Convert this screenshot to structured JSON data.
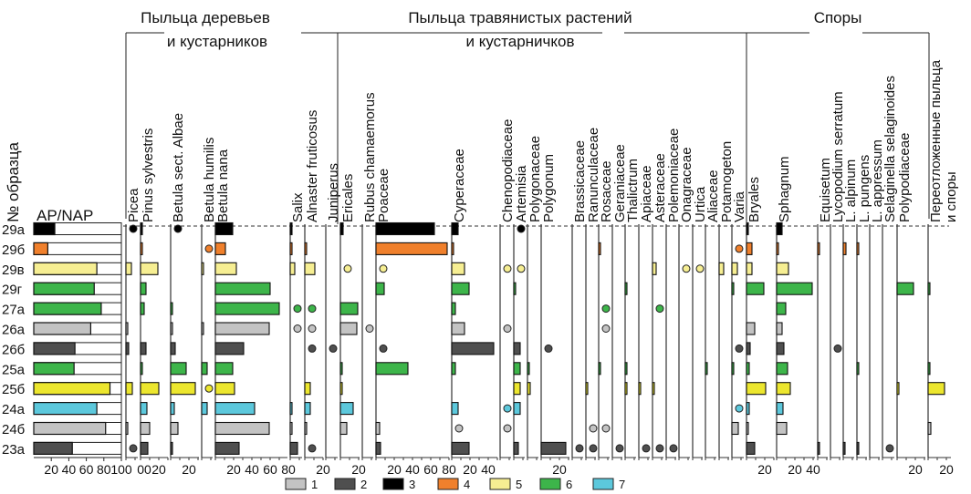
{
  "chart_data": {
    "type": "bar",
    "title": "",
    "ylabel": "№ образца",
    "samples": [
      "29а",
      "29б",
      "29в",
      "29г",
      "27а",
      "26а",
      "26б",
      "25а",
      "25б",
      "24а",
      "24б",
      "23а"
    ],
    "sample_group": [
      3,
      4,
      5,
      6,
      6,
      1,
      2,
      6,
      5,
      7,
      1,
      2
    ],
    "group_colors": {
      "1": "#c3c3c3",
      "2": "#4f4f4f",
      "3": "#000000",
      "4": "#f0802c",
      "5": "#f6ee92",
      "6": "#3db54a",
      "7": "#5cc8dc"
    },
    "bright_yellow": "#ece62e",
    "groups": [
      {
        "line1": "Пыльца деревьев",
        "line2": "и кустарников"
      },
      {
        "line1": "Пыльца травянистых растений",
        "line2": "и кустарничков"
      },
      {
        "line1": "Споры",
        "line2": ""
      }
    ],
    "apnap": {
      "label": "AP/NAP",
      "ticks": [
        "20",
        "40",
        "60",
        "80",
        "100"
      ],
      "values": [
        24,
        16,
        72,
        69,
        77,
        65,
        47,
        46,
        87,
        72,
        82,
        44
      ]
    },
    "presence_note": "+ = single grains (dot)",
    "taxa": [
      {
        "name": "Picea",
        "ticks": [
          "00"
        ],
        "values": [
          "+",
          null,
          6,
          null,
          null,
          0.5,
          3,
          null,
          7,
          null,
          0.5,
          "+"
        ]
      },
      {
        "name": "Pinus sylvestris",
        "ticks": [
          "20"
        ],
        "values": [
          0.5,
          0.5,
          19,
          6,
          4,
          null,
          6,
          2,
          20,
          7,
          10,
          8
        ]
      },
      {
        "name": "Betula sect. Albae",
        "ticks": [
          "20"
        ],
        "values": [
          "+",
          null,
          null,
          null,
          0.5,
          0.5,
          5,
          17,
          27,
          4,
          8,
          0.5
        ]
      },
      {
        "name": "Betula humilis",
        "ticks": [],
        "values": [
          null,
          "+",
          2,
          null,
          null,
          2,
          null,
          6,
          "+",
          6,
          null,
          null
        ]
      },
      {
        "name": "Betula nana",
        "ticks": [
          "20",
          "40",
          "60",
          "80"
        ],
        "values": [
          19,
          11,
          23,
          60,
          70,
          59,
          31,
          19,
          21,
          43,
          59,
          26
        ]
      },
      {
        "name": "Salix",
        "ticks": [],
        "values": [
          0.5,
          0.5,
          5,
          null,
          "+",
          "+",
          null,
          null,
          null,
          0.5,
          0.5,
          8
        ]
      },
      {
        "name": "Alnaster fruticosus",
        "ticks": [
          "20"
        ],
        "values": [
          null,
          0.5,
          11,
          null,
          "+",
          "+",
          "+",
          null,
          6,
          6,
          0.5,
          "+"
        ]
      },
      {
        "name": "Juniperus",
        "ticks": [],
        "values": [
          null,
          null,
          null,
          null,
          null,
          null,
          "+",
          null,
          null,
          null,
          null,
          null
        ]
      },
      {
        "name": "Ericales",
        "ticks": [
          "20"
        ],
        "values": [
          3,
          null,
          "+",
          null,
          19,
          18,
          null,
          0.5,
          0.5,
          14,
          7,
          null
        ]
      },
      {
        "name": "Rubus chamaemorus",
        "ticks": [],
        "values": [
          null,
          null,
          null,
          null,
          null,
          "+",
          null,
          null,
          null,
          null,
          null,
          null
        ]
      },
      {
        "name": "Poaceae",
        "ticks": [
          "20",
          "40",
          "60",
          "80"
        ],
        "values": [
          64,
          78,
          "+",
          9,
          null,
          null,
          "+",
          35,
          null,
          null,
          4,
          5
        ]
      },
      {
        "name": "Cyperaceae",
        "ticks": [
          "20",
          "40"
        ],
        "values": [
          7,
          2,
          14,
          19,
          4,
          14,
          46,
          4,
          null,
          7,
          "+",
          19
        ]
      },
      {
        "name": "Chenopodiaceae",
        "ticks": [],
        "values": [
          null,
          null,
          "+",
          null,
          null,
          "+",
          null,
          null,
          null,
          "+",
          "+",
          null
        ]
      },
      {
        "name": "Artemisia",
        "ticks": [],
        "values": [
          "+",
          null,
          "+",
          0.5,
          null,
          null,
          7,
          7,
          7,
          7,
          null,
          5
        ]
      },
      {
        "name": "Polygonaceae",
        "ticks": [],
        "values": [
          null,
          null,
          null,
          null,
          null,
          null,
          null,
          0.5,
          3,
          null,
          null,
          null
        ]
      },
      {
        "name": "Polygonum",
        "ticks": [
          "20"
        ],
        "values": [
          null,
          null,
          null,
          null,
          null,
          null,
          "+",
          null,
          null,
          null,
          null,
          27
        ]
      },
      {
        "name": "Brassicaceae",
        "ticks": [],
        "values": [
          null,
          null,
          null,
          null,
          null,
          null,
          null,
          null,
          null,
          null,
          null,
          "+"
        ]
      },
      {
        "name": "Ranunculaceae",
        "ticks": [],
        "values": [
          null,
          null,
          null,
          null,
          null,
          null,
          null,
          null,
          0.5,
          null,
          "+",
          "+"
        ]
      },
      {
        "name": "Rosaceae",
        "ticks": [],
        "values": [
          null,
          1.5,
          null,
          null,
          "+",
          "+",
          null,
          0.5,
          null,
          null,
          "+",
          null
        ]
      },
      {
        "name": "Geraniaceae",
        "ticks": [],
        "values": [
          null,
          null,
          null,
          null,
          null,
          null,
          null,
          null,
          null,
          null,
          null,
          "+"
        ]
      },
      {
        "name": "Thalictrum",
        "ticks": [],
        "values": [
          null,
          null,
          null,
          0.5,
          null,
          null,
          null,
          0.5,
          0.5,
          null,
          null,
          null
        ]
      },
      {
        "name": "Apiaceae",
        "ticks": [],
        "values": [
          null,
          null,
          null,
          null,
          null,
          null,
          null,
          null,
          0.5,
          null,
          null,
          "+"
        ]
      },
      {
        "name": "Asteraceae",
        "ticks": [],
        "values": [
          null,
          null,
          4,
          null,
          "+",
          null,
          null,
          null,
          0.5,
          null,
          null,
          "+"
        ]
      },
      {
        "name": "Polemoniaceae",
        "ticks": [],
        "values": [
          null,
          null,
          null,
          null,
          null,
          null,
          null,
          null,
          null,
          null,
          null,
          "+"
        ]
      },
      {
        "name": "Onagraceae",
        "ticks": [],
        "values": [
          null,
          null,
          "+",
          null,
          null,
          null,
          null,
          null,
          null,
          null,
          null,
          null
        ]
      },
      {
        "name": "Urtica",
        "ticks": [],
        "values": [
          null,
          null,
          "+",
          null,
          null,
          null,
          null,
          null,
          null,
          null,
          null,
          null
        ]
      },
      {
        "name": "Aliaceae",
        "ticks": [],
        "values": [
          null,
          null,
          null,
          null,
          null,
          null,
          null,
          0.5,
          null,
          null,
          null,
          null
        ]
      },
      {
        "name": "Potamogeton",
        "ticks": [],
        "values": [
          null,
          null,
          5,
          null,
          null,
          null,
          null,
          null,
          null,
          null,
          null,
          null
        ]
      },
      {
        "name": "Varia",
        "ticks": [],
        "values": [
          null,
          "+",
          6,
          0.5,
          null,
          null,
          "+",
          0.5,
          null,
          "+",
          7,
          null
        ]
      },
      {
        "name": "Bryales",
        "ticks": [
          "20"
        ],
        "values": [
          0.5,
          6,
          6,
          19,
          null,
          9,
          4,
          3,
          21,
          3,
          0.5,
          9
        ]
      },
      {
        "name": "Sphagnum",
        "ticks": [
          "20",
          "40"
        ],
        "values": [
          6,
          2,
          13,
          39,
          10,
          6,
          8,
          12,
          15,
          7,
          11,
          null
        ]
      },
      {
        "name": "Equisetum",
        "ticks": [],
        "values": [
          null,
          0.5,
          null,
          null,
          null,
          null,
          null,
          null,
          null,
          null,
          null,
          2
        ]
      },
      {
        "name": "Lycopodium serratum",
        "ticks": [],
        "values": [
          null,
          null,
          null,
          null,
          null,
          null,
          "+",
          null,
          null,
          null,
          null,
          null
        ]
      },
      {
        "name": "L. alpinum",
        "ticks": [],
        "values": [
          null,
          3,
          null,
          null,
          null,
          null,
          null,
          null,
          null,
          null,
          null,
          2
        ]
      },
      {
        "name": "L. pungens",
        "ticks": [],
        "values": [
          null,
          0.5,
          null,
          null,
          null,
          null,
          null,
          0.5,
          null,
          null,
          null,
          2
        ]
      },
      {
        "name": "L. appressum",
        "ticks": [],
        "values": [
          null,
          null,
          null,
          null,
          null,
          null,
          null,
          null,
          null,
          null,
          null,
          null
        ]
      },
      {
        "name": "Selaginella selaginoides",
        "ticks": [],
        "values": [
          null,
          null,
          null,
          null,
          null,
          null,
          null,
          null,
          null,
          null,
          null,
          "+"
        ]
      },
      {
        "name": "Polypodiaceae",
        "ticks": [
          "20"
        ],
        "values": [
          null,
          null,
          null,
          18,
          null,
          null,
          null,
          null,
          0.5,
          null,
          null,
          null
        ]
      },
      {
        "name": "Переотложенные пыльца",
        "name2": "и споры",
        "ticks": [
          "20"
        ],
        "values": [
          null,
          null,
          null,
          1.5,
          null,
          null,
          null,
          1.5,
          18,
          null,
          3,
          null
        ]
      }
    ],
    "legend": [
      "1",
      "2",
      "3",
      "4",
      "5",
      "6",
      "7"
    ]
  }
}
